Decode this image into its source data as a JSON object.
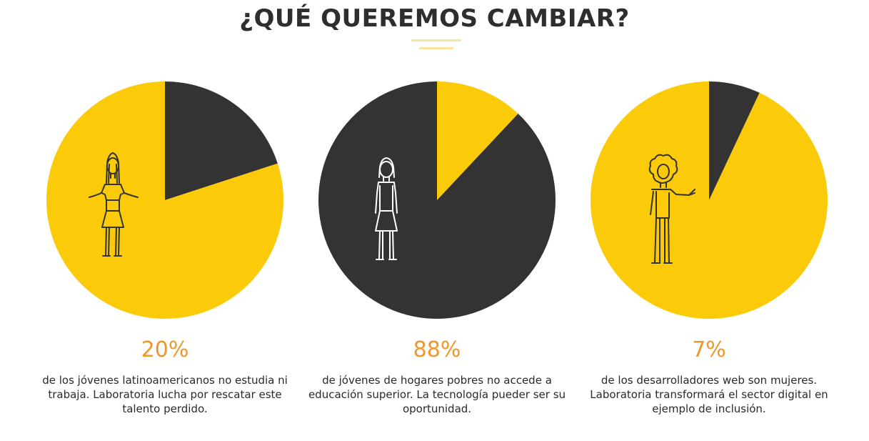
{
  "page": {
    "title": "¿QUÉ QUEREMOS CAMBIAR?"
  },
  "colors": {
    "yellow": "#fbcb0a",
    "dark": "#333333",
    "accent_orange": "#f0962e",
    "divider": "#fbe3a3"
  },
  "chart_data": [
    {
      "type": "pie",
      "slices": [
        {
          "label": "highlighted",
          "value": 20,
          "color": "#333333"
        },
        {
          "label": "rest",
          "value": 80,
          "color": "#fbcb0a"
        }
      ],
      "percent_label": "20%",
      "description": "de los jóvenes latinoamericanos no estudia ni trabaja. Laboratoria lucha por rescatar este talento perdido.",
      "icon": "girl-with-pigtails-icon",
      "icon_stroke": "#333333"
    },
    {
      "type": "pie",
      "slices": [
        {
          "label": "rest",
          "value": 12,
          "color": "#fbcb0a"
        },
        {
          "label": "highlighted",
          "value": 88,
          "color": "#333333"
        }
      ],
      "percent_label": "88%",
      "description": "de jóvenes de hogares pobres no accede a educación superior. La tecnología pueder ser su oportunidad.",
      "icon": "woman-standing-icon",
      "icon_stroke": "#ffffff"
    },
    {
      "type": "pie",
      "slices": [
        {
          "label": "highlighted",
          "value": 7,
          "color": "#333333"
        },
        {
          "label": "rest",
          "value": 93,
          "color": "#fbcb0a"
        }
      ],
      "percent_label": "7%",
      "description": "de los desarrolladores web son mujeres. Laboratoria transformará el sector digital en ejemplo de inclusión.",
      "icon": "curly-haired-woman-pointing-icon",
      "icon_stroke": "#333333"
    }
  ]
}
